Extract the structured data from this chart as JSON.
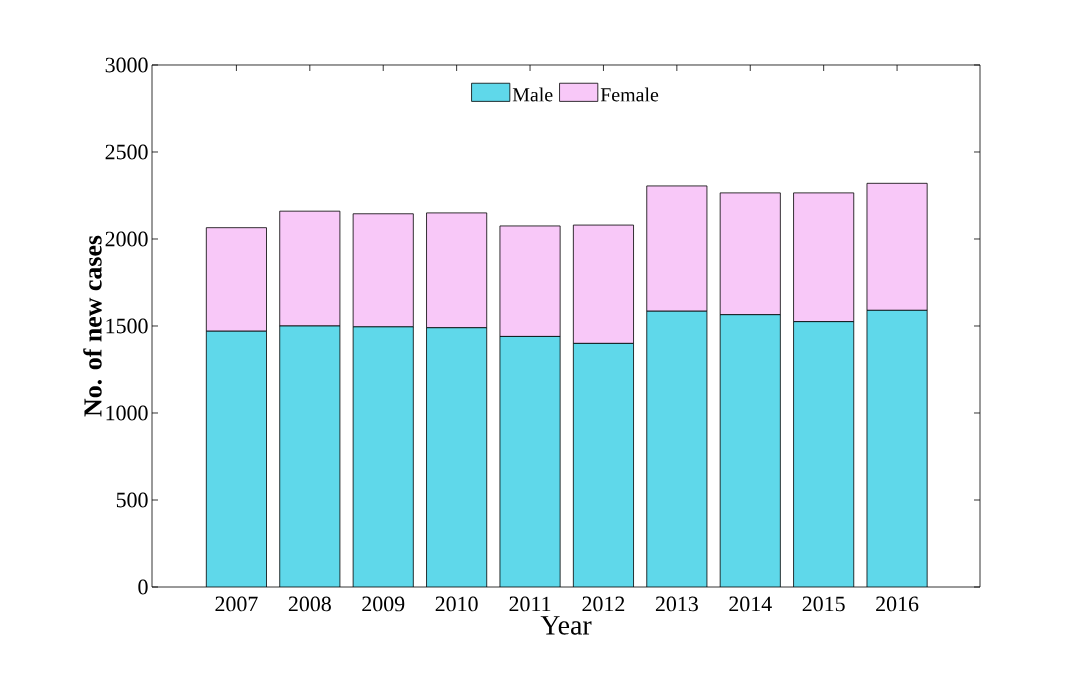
{
  "chart_data": {
    "type": "bar",
    "stacked": true,
    "xlabel": "Year",
    "ylabel": "No. of new cases",
    "categories": [
      "2007",
      "2008",
      "2009",
      "2010",
      "2011",
      "2012",
      "2013",
      "2014",
      "2015",
      "2016"
    ],
    "series": [
      {
        "name": "Male",
        "color": "#5fd8ea",
        "values": [
          1470,
          1500,
          1495,
          1490,
          1440,
          1400,
          1585,
          1565,
          1525,
          1590
        ]
      },
      {
        "name": "Female",
        "color": "#f8c8f8",
        "values": [
          595,
          660,
          650,
          660,
          635,
          680,
          720,
          700,
          740,
          730
        ]
      }
    ],
    "ylim": [
      0,
      3000
    ],
    "yticks": [
      0,
      500,
      1000,
      1500,
      2000,
      2500,
      3000
    ],
    "legend": "top"
  }
}
